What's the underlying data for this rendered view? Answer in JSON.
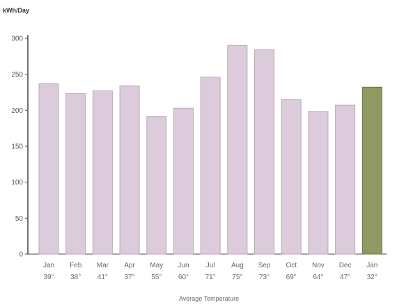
{
  "chart_data": {
    "type": "bar",
    "ylabel": "kWh/Day",
    "xlabel": "Average Temperature",
    "ylim": [
      0,
      300
    ],
    "yticks": [
      0,
      50,
      100,
      150,
      200,
      250,
      300
    ],
    "categories": [
      "Jan",
      "Feb",
      "Mar",
      "Apr",
      "May",
      "Jun",
      "Jul",
      "Aug",
      "Sep",
      "Oct",
      "Nov",
      "Dec",
      "Jan"
    ],
    "temperatures": [
      "39°",
      "38°",
      "41°",
      "37°",
      "55°",
      "60°",
      "71°",
      "75°",
      "73°",
      "69°",
      "64°",
      "47°",
      "32°"
    ],
    "values": [
      237,
      223,
      227,
      234,
      191,
      203,
      246,
      290,
      284,
      215,
      198,
      207,
      232
    ],
    "colors": {
      "bar": "#dccbdb",
      "bar_edge": "#b9a8b9",
      "highlight": "#8f9a63",
      "highlight_edge": "#6b7442",
      "axis": "#444444"
    },
    "highlight_index": 12,
    "grid": false,
    "legend": "none"
  }
}
